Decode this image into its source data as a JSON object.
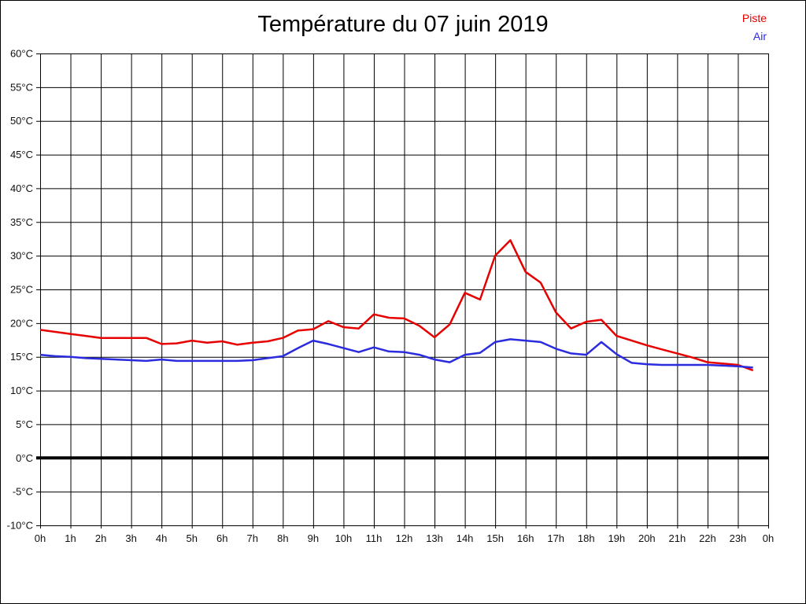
{
  "title": "Température du 07 juin 2019",
  "legend": {
    "items": [
      {
        "label": "Piste",
        "color": "#e60000"
      },
      {
        "label": "Air",
        "color": "#2b2bdf"
      }
    ]
  },
  "chart_data": {
    "type": "line",
    "title": "Température du 07 juin 2019",
    "xlabel": "",
    "ylabel": "",
    "x_unit": "hour of day",
    "y_unit": "°C",
    "xlim": [
      0,
      24
    ],
    "ylim": [
      -10,
      60
    ],
    "grid": true,
    "zero_line": true,
    "legend_position": "top-right",
    "x_ticks": [
      0,
      1,
      2,
      3,
      4,
      5,
      6,
      7,
      8,
      9,
      10,
      11,
      12,
      13,
      14,
      15,
      16,
      17,
      18,
      19,
      20,
      21,
      22,
      23,
      24
    ],
    "x_tick_labels": [
      "0h",
      "1h",
      "2h",
      "3h",
      "4h",
      "5h",
      "6h",
      "7h",
      "8h",
      "9h",
      "10h",
      "11h",
      "12h",
      "13h",
      "14h",
      "15h",
      "16h",
      "17h",
      "18h",
      "19h",
      "20h",
      "21h",
      "22h",
      "23h",
      "0h"
    ],
    "y_ticks": [
      60,
      55,
      50,
      45,
      40,
      35,
      30,
      25,
      20,
      15,
      10,
      5,
      0,
      -5,
      -10
    ],
    "y_tick_labels": [
      "60°C",
      "55°C",
      "50°C",
      "45°C",
      "40°C",
      "35°C",
      "30°C",
      "25°C",
      "20°C",
      "15°C",
      "10°C",
      "5°C",
      "0°C",
      "-5°C",
      "-10°C"
    ],
    "x": [
      0,
      0.5,
      1,
      1.5,
      2,
      2.5,
      3,
      3.5,
      4,
      4.5,
      5,
      5.5,
      6,
      6.5,
      7,
      7.5,
      8,
      8.5,
      9,
      9.5,
      10,
      10.5,
      11,
      11.5,
      12,
      12.5,
      13,
      13.5,
      14,
      14.5,
      15,
      15.5,
      16,
      16.5,
      17,
      17.5,
      18,
      18.5,
      19,
      19.5,
      20,
      20.5,
      21,
      21.5,
      22,
      22.5,
      23,
      23.5
    ],
    "series": [
      {
        "name": "Piste",
        "color": "#e60000",
        "values": [
          19.0,
          18.7,
          18.4,
          18.1,
          17.8,
          17.8,
          17.8,
          17.8,
          16.9,
          17.0,
          17.4,
          17.1,
          17.3,
          16.8,
          17.1,
          17.3,
          17.8,
          18.9,
          19.1,
          20.3,
          19.4,
          19.2,
          21.3,
          20.8,
          20.7,
          19.6,
          17.9,
          19.8,
          24.5,
          23.5,
          30.0,
          32.3,
          27.6,
          26.0,
          21.6,
          19.2,
          20.2,
          20.5,
          18.1,
          17.4,
          16.7,
          16.1,
          15.5,
          14.9,
          14.2,
          14.0,
          13.8,
          13.0
        ]
      },
      {
        "name": "Air",
        "color": "#2b2bdf",
        "values": [
          15.3,
          15.1,
          15.0,
          14.8,
          14.7,
          14.6,
          14.5,
          14.4,
          14.6,
          14.4,
          14.4,
          14.4,
          14.4,
          14.4,
          14.5,
          14.8,
          15.1,
          16.3,
          17.4,
          16.9,
          16.3,
          15.7,
          16.4,
          15.8,
          15.7,
          15.3,
          14.6,
          14.2,
          15.3,
          15.6,
          17.2,
          17.6,
          17.4,
          17.2,
          16.2,
          15.5,
          15.3,
          17.2,
          15.4,
          14.1,
          13.9,
          13.8,
          13.8,
          13.8,
          13.8,
          13.7,
          13.6,
          13.4
        ]
      }
    ]
  }
}
